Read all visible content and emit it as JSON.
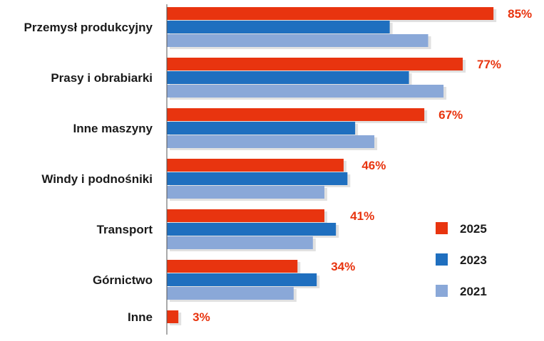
{
  "chart_data": {
    "type": "bar",
    "orientation": "horizontal",
    "categories": [
      "Przemysł produkcyjny",
      "Prasy i obrabiarki",
      "Inne maszyny",
      "Windy i podnośniki",
      "Transport",
      "Górnictwo",
      "Inne"
    ],
    "series": [
      {
        "name": "2025",
        "color": "#e8340f",
        "values": [
          85,
          77,
          67,
          46,
          41,
          34,
          3
        ],
        "labels": [
          "85%",
          "77%",
          "67%",
          "46%",
          "41%",
          "34%",
          "3%"
        ]
      },
      {
        "name": "2023",
        "color": "#1f6fbf",
        "values": [
          58,
          63,
          49,
          47,
          44,
          39,
          null
        ]
      },
      {
        "name": "2021",
        "color": "#8aa8d8",
        "values": [
          68,
          72,
          54,
          41,
          38,
          33,
          null
        ]
      }
    ],
    "xlim": [
      0,
      100
    ],
    "grid": false,
    "legend_position": "right"
  }
}
